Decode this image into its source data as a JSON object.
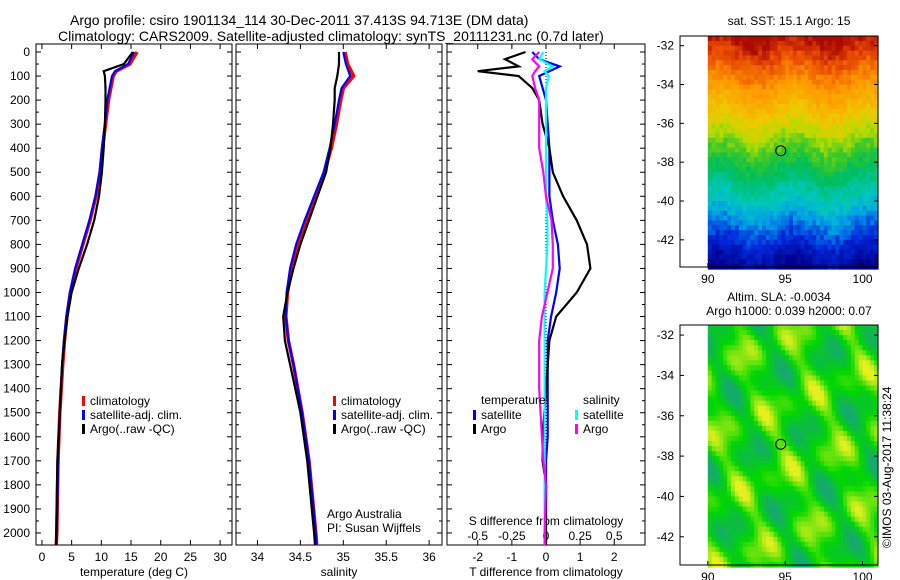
{
  "title_line1": "Argo profile: csiro 1901134_114 30-Dec-2011 37.413S 94.713E (DM data)",
  "title_line2": "Climatology: CARS2009. Satellite-adjusted climatology: synTS_20111231.nc (0.7d later)",
  "credit": "Argo Australia",
  "pi": "PI: Susan Wijffels",
  "stamp": "©IMOS 03-Aug-2017 11:38:24",
  "colors": {
    "climatology": "#ff0000",
    "satellite": "#0000ff",
    "argo": "#000000",
    "sal_satellite": "#00ffff",
    "sal_argo": "#ff00ff"
  },
  "chart_data": [
    {
      "type": "line",
      "id": "temp",
      "xlabel": "temperature (deg C)",
      "ylabel": "",
      "xlim": [
        -1,
        32
      ],
      "ylim": [
        2050,
        0
      ],
      "xticks": [
        "0",
        "5",
        "10",
        "15",
        "20",
        "25",
        "30"
      ],
      "xtickvals": [
        0,
        5,
        10,
        15,
        20,
        25,
        30
      ],
      "yticks": [
        "0",
        "100",
        "200",
        "300",
        "400",
        "500",
        "600",
        "700",
        "800",
        "900",
        "1000",
        "1100",
        "1200",
        "1300",
        "1400",
        "1500",
        "1600",
        "1700",
        "1800",
        "1900",
        "2000"
      ],
      "legend": [
        "climatology",
        "satellite-adj. clim.",
        "Argo(..raw -QC)"
      ],
      "depth": [
        0,
        50,
        80,
        100,
        150,
        200,
        300,
        400,
        500,
        600,
        700,
        800,
        900,
        1000,
        1100,
        1200,
        1300,
        1500,
        1700,
        2000,
        2050
      ],
      "series": [
        {
          "name": "climatology",
          "color": "#ff0000",
          "values": [
            16,
            14.8,
            12.5,
            12,
            11.6,
            11.2,
            10.7,
            10.2,
            9.8,
            9.1,
            8.1,
            6.9,
            5.7,
            4.8,
            4.2,
            3.8,
            3.5,
            3.0,
            2.7,
            2.5,
            2.4
          ]
        },
        {
          "name": "satellite-adj. clim.",
          "color": "#0000ff",
          "values": [
            15.5,
            14.5,
            12.3,
            11.8,
            11.4,
            11.0,
            10.6,
            10.1,
            9.7,
            9.0,
            8.0,
            6.8,
            5.6,
            4.7,
            4.1,
            3.7,
            3.4,
            3.0,
            2.7,
            2.5,
            2.4
          ]
        },
        {
          "name": "Argo(..raw -QC)",
          "color": "#000000",
          "values": [
            15.3,
            13.8,
            10.4,
            10.6,
            10.7,
            10.7,
            10.6,
            10.4,
            10.1,
            9.6,
            8.8,
            7.6,
            6.2,
            5.0,
            4.3,
            3.8,
            3.4,
            3.0,
            2.6,
            2.4,
            2.4
          ]
        }
      ]
    },
    {
      "type": "line",
      "id": "sal",
      "xlabel": "salinity",
      "xlim": [
        33.75,
        36.15
      ],
      "ylim": [
        2050,
        0
      ],
      "xticks": [
        "34",
        "34.5",
        "35",
        "35.5",
        "36"
      ],
      "xtickvals": [
        34,
        34.5,
        35,
        35.5,
        36
      ],
      "legend": [
        "climatology",
        "satellite-adj. clim.",
        "Argo(..raw -QC)"
      ],
      "depth": [
        0,
        50,
        100,
        150,
        200,
        300,
        400,
        500,
        600,
        700,
        800,
        900,
        1000,
        1100,
        1200,
        1300,
        1500,
        1700,
        2000,
        2050
      ],
      "series": [
        {
          "name": "climatology",
          "color": "#ff0000",
          "values": [
            35.02,
            35.05,
            35.12,
            35.0,
            34.97,
            34.92,
            34.86,
            34.78,
            34.68,
            34.57,
            34.47,
            34.4,
            34.35,
            34.33,
            34.36,
            34.42,
            34.52,
            34.6,
            34.68,
            34.69
          ]
        },
        {
          "name": "satellite-adj. clim.",
          "color": "#0000ff",
          "values": [
            35.0,
            35.03,
            35.08,
            34.98,
            34.95,
            34.9,
            34.84,
            34.77,
            34.66,
            34.55,
            34.45,
            34.38,
            34.34,
            34.33,
            34.36,
            34.42,
            34.52,
            34.6,
            34.68,
            34.69
          ]
        },
        {
          "name": "Argo(..raw -QC)",
          "color": "#000000",
          "values": [
            34.95,
            34.95,
            34.93,
            34.9,
            34.9,
            34.88,
            34.85,
            34.8,
            34.7,
            34.6,
            34.5,
            34.42,
            34.35,
            34.3,
            34.32,
            34.38,
            34.5,
            34.58,
            34.66,
            34.67
          ]
        }
      ]
    },
    {
      "type": "line",
      "id": "diff",
      "xlabel": "T difference from climatology",
      "x2label": "S difference from climatology",
      "xlim": [
        -2.9,
        2.9
      ],
      "ylim": [
        2050,
        0
      ],
      "xticks": [
        "-2",
        "-1",
        "0",
        "1",
        "2"
      ],
      "xtickvals": [
        -2,
        -1,
        0,
        1,
        2
      ],
      "x2ticks": [
        "-0.5",
        "-0.25",
        "0",
        "0.25",
        "0.5"
      ],
      "x2tickvals": [
        -0.5,
        -0.25,
        0,
        0.25,
        0.5
      ],
      "legend_titles": [
        "temperature",
        "salinity"
      ],
      "legend": [
        "satellite",
        "Argo",
        "satellite",
        "Argo"
      ],
      "depth": [
        0,
        30,
        60,
        80,
        100,
        150,
        200,
        300,
        400,
        500,
        600,
        700,
        800,
        900,
        1000,
        1100,
        1200,
        1400,
        1600,
        1700,
        1800,
        2000,
        2050
      ],
      "series": [
        {
          "name": "T satellite",
          "color": "#0000ff",
          "values": [
            -0.4,
            -0.2,
            0.4,
            0.1,
            -0.2,
            -0.1,
            0,
            0.05,
            0.1,
            0.1,
            0.1,
            0.2,
            0.35,
            0.4,
            0.3,
            0.15,
            0.05,
            0.05,
            0.05,
            0,
            0,
            0,
            0
          ]
        },
        {
          "name": "T Argo",
          "color": "#000000",
          "values": [
            -0.6,
            -1.2,
            -0.8,
            -2.0,
            -0.8,
            -0.4,
            -0.2,
            -0.1,
            0.1,
            0.2,
            0.5,
            0.9,
            1.2,
            1.3,
            0.9,
            0.3,
            0.1,
            0,
            -0.1,
            -0.1,
            0,
            0,
            0
          ]
        },
        {
          "name": "S satellite",
          "color": "#00ffff",
          "values": [
            -0.02,
            -0.05,
            0.05,
            -0.01,
            0.02,
            0,
            0,
            0,
            0,
            0,
            0,
            0.01,
            0.01,
            0,
            -0.01,
            -0.01,
            -0.01,
            -0.01,
            -0.01,
            -0.01,
            -0.01,
            -0.01,
            -0.01
          ]
        },
        {
          "name": "S Argo",
          "color": "#ff00ff",
          "values": [
            -0.05,
            -0.1,
            -0.05,
            -0.08,
            -0.1,
            -0.08,
            -0.05,
            -0.05,
            -0.05,
            -0.02,
            0,
            0.04,
            0.05,
            0.05,
            0.01,
            -0.03,
            -0.05,
            -0.05,
            -0.03,
            -0.02,
            0,
            -0.01,
            -0.01
          ]
        }
      ]
    },
    {
      "type": "heatmap",
      "id": "sst",
      "title": "sat. SST: 15.1 Argo: 15",
      "xlim": [
        88.2,
        101
      ],
      "ylim": [
        -43.4,
        -31.5
      ],
      "xticks": [
        "90",
        "95",
        "100"
      ],
      "xtickvals": [
        90,
        95,
        100
      ],
      "yticks": [
        "-32",
        "-34",
        "-36",
        "-38",
        "-40",
        "-42"
      ],
      "ytickvals": [
        -32,
        -34,
        -36,
        -38,
        -40,
        -42
      ],
      "marker": [
        94.713,
        -37.413
      ]
    },
    {
      "type": "heatmap",
      "id": "sla",
      "title": "Altim. SLA: -0.0034",
      "subtitle": "Argo h1000: 0.039 h2000: 0.07",
      "xlim": [
        88.2,
        101
      ],
      "ylim": [
        -43.4,
        -31.5
      ],
      "xticks": [
        "90",
        "95",
        "100"
      ],
      "xtickvals": [
        90,
        95,
        100
      ],
      "yticks": [
        "-32",
        "-34",
        "-36",
        "-38",
        "-40",
        "-42"
      ],
      "ytickvals": [
        -32,
        -34,
        -36,
        -38,
        -40,
        -42
      ],
      "marker": [
        94.713,
        -37.413
      ]
    }
  ]
}
